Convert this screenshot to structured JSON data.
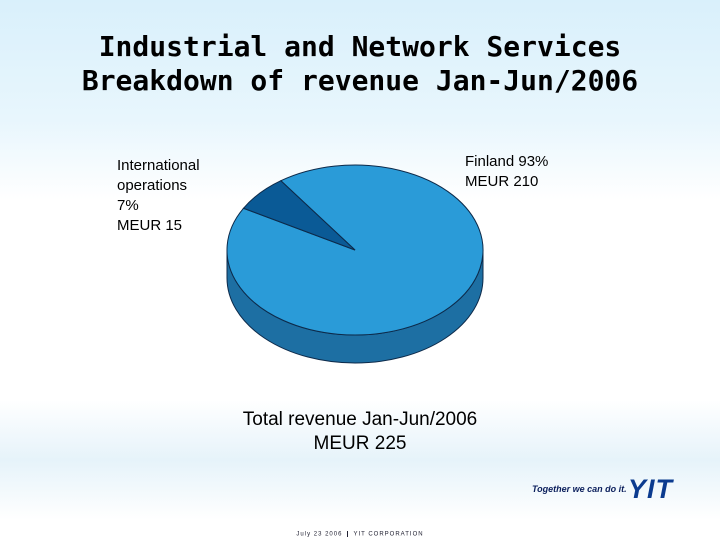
{
  "slide": {
    "title_line1": "Industrial and Network Services",
    "title_line2": "Breakdown of revenue Jan-Jun/2006",
    "total_line1": "Total revenue Jan-Jun/2006",
    "total_line2": "MEUR 225",
    "footer_date": "July 23 2006",
    "footer_company": "YIT CORPORATION",
    "logo_tagline": "Together we can do it.",
    "logo_name": "YIT"
  },
  "chart_data": {
    "type": "pie",
    "title": "Breakdown of revenue Jan-Jun/2006",
    "slices": [
      {
        "label_lines": [
          "Finland 93%",
          "MEUR 210"
        ],
        "percent": 93,
        "value": 210,
        "color": "#2a9bd8",
        "side_color": "#1d6fa3"
      },
      {
        "label_lines": [
          "International",
          "operations",
          "7%",
          "MEUR 15"
        ],
        "percent": 7,
        "value": 15,
        "color": "#0a5a96",
        "side_color": "#073f6b"
      }
    ],
    "legend": "none"
  },
  "colors": {
    "outline": "#0d2a4a",
    "logo_blue": "#0b3b8f"
  }
}
